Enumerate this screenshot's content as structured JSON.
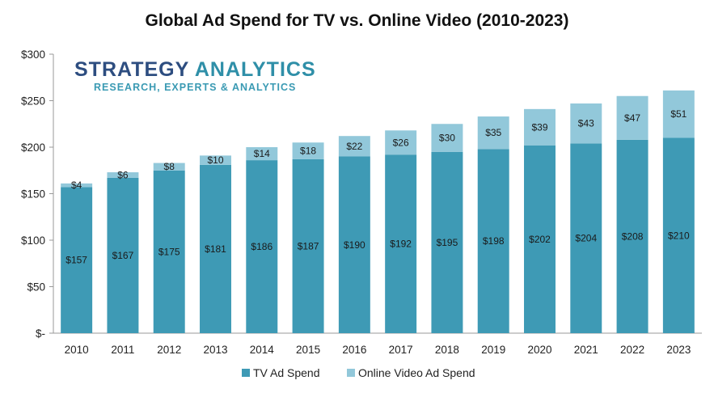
{
  "chart_data": {
    "type": "bar",
    "stacked": true,
    "title": "Global Ad Spend for TV vs. Online Video (2010-2023)",
    "xlabel": "",
    "ylabel": "",
    "ylim": [
      0,
      300
    ],
    "yticks": [
      0,
      50,
      100,
      150,
      200,
      250,
      300
    ],
    "ytick_labels": [
      "$-",
      "$50",
      "$100",
      "$150",
      "$200",
      "$250",
      "$300"
    ],
    "categories": [
      "2010",
      "2011",
      "2012",
      "2013",
      "2014",
      "2015",
      "2016",
      "2017",
      "2018",
      "2019",
      "2020",
      "2021",
      "2022",
      "2023"
    ],
    "series": [
      {
        "name": "TV Ad Spend",
        "color": "#3e9ab5",
        "values": [
          157,
          167,
          175,
          181,
          186,
          187,
          190,
          192,
          195,
          198,
          202,
          204,
          208,
          210
        ],
        "labels": [
          "$157",
          "$167",
          "$175",
          "$181",
          "$186",
          "$187",
          "$190",
          "$192",
          "$195",
          "$198",
          "$202",
          "$204",
          "$208",
          "$210"
        ]
      },
      {
        "name": "Online Video Ad Spend",
        "color": "#92c8da",
        "values": [
          4,
          6,
          8,
          10,
          14,
          18,
          22,
          26,
          30,
          35,
          39,
          43,
          47,
          51
        ],
        "labels": [
          "$4",
          "$6",
          "$8",
          "$10",
          "$14",
          "$18",
          "$22",
          "$26",
          "$30",
          "$35",
          "$39",
          "$43",
          "$47",
          "$51"
        ]
      }
    ],
    "grid": false,
    "legend_position": "bottom"
  },
  "logo": {
    "line1_part1": "STRATEGY",
    "line1_part2": "ANALYTICS",
    "line2": "RESEARCH, EXPERTS & ANALYTICS"
  }
}
